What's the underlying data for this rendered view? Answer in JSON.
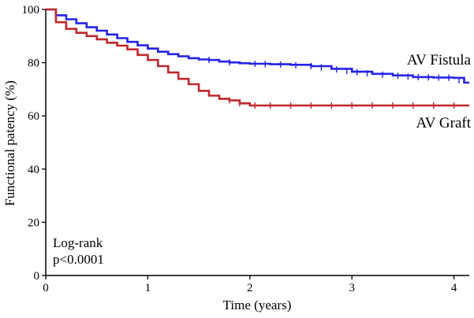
{
  "chart_data": {
    "type": "line",
    "subtype": "kaplan-meier",
    "title": "",
    "xlabel": "Time (years)",
    "ylabel": "Functional patency (%)",
    "xlim": [
      0,
      4.15
    ],
    "ylim": [
      0,
      100
    ],
    "x_ticks": [
      0,
      1,
      2,
      3,
      4
    ],
    "y_ticks": [
      0,
      20,
      40,
      60,
      80,
      100
    ],
    "grid": false,
    "legend": "inline labels at right",
    "annotation": [
      "Log-rank",
      "p<0.0001"
    ],
    "series": [
      {
        "name": "AV Fistula",
        "color": "#2323e6",
        "x": [
          0,
          0.1,
          0.2,
          0.3,
          0.4,
          0.5,
          0.6,
          0.7,
          0.8,
          0.9,
          1.0,
          1.1,
          1.2,
          1.3,
          1.4,
          1.5,
          1.6,
          1.7,
          1.8,
          1.9,
          2.0,
          2.2,
          2.4,
          2.6,
          2.8,
          3.0,
          3.2,
          3.4,
          3.6,
          3.8,
          4.0,
          4.1,
          4.15
        ],
        "y": [
          100,
          97.8,
          96.3,
          94.8,
          93.3,
          92.0,
          90.6,
          89.2,
          87.8,
          86.5,
          85.3,
          84.1,
          83.2,
          82.4,
          81.7,
          81.2,
          81.0,
          80.4,
          80.1,
          79.8,
          79.6,
          79.4,
          79.2,
          78.7,
          77.7,
          76.6,
          75.8,
          75.2,
          74.6,
          74.4,
          74.3,
          72.5,
          72.5
        ]
      },
      {
        "name": "AV Graft",
        "color": "#c0282d",
        "x": [
          0,
          0.1,
          0.2,
          0.3,
          0.4,
          0.5,
          0.6,
          0.7,
          0.8,
          0.9,
          1.0,
          1.1,
          1.2,
          1.3,
          1.4,
          1.5,
          1.6,
          1.7,
          1.8,
          1.9,
          2.0,
          2.2,
          2.5,
          3.0,
          3.5,
          4.0,
          4.15
        ],
        "y": [
          100,
          95.2,
          92.7,
          91.2,
          90.0,
          88.8,
          87.5,
          86.4,
          85.0,
          82.9,
          81.0,
          78.7,
          76.3,
          73.9,
          71.9,
          69.4,
          67.6,
          66.4,
          65.8,
          64.7,
          63.9,
          63.9,
          63.9,
          63.9,
          63.9,
          63.9,
          63.9
        ]
      }
    ],
    "censor_marks": [
      {
        "series": "AV Fistula",
        "x": [
          1.6,
          1.8,
          2.05,
          2.15,
          2.3,
          2.45,
          2.6,
          2.7,
          2.85,
          2.95,
          3.05,
          3.15,
          3.3,
          3.45,
          3.55,
          3.65,
          3.75,
          3.85,
          3.95,
          4.05
        ]
      },
      {
        "series": "AV Graft",
        "x": [
          1.8,
          1.9,
          2.05,
          2.2,
          2.4,
          2.6,
          2.8,
          3.0,
          3.2,
          3.4,
          3.6,
          3.8,
          4.0
        ]
      }
    ]
  }
}
